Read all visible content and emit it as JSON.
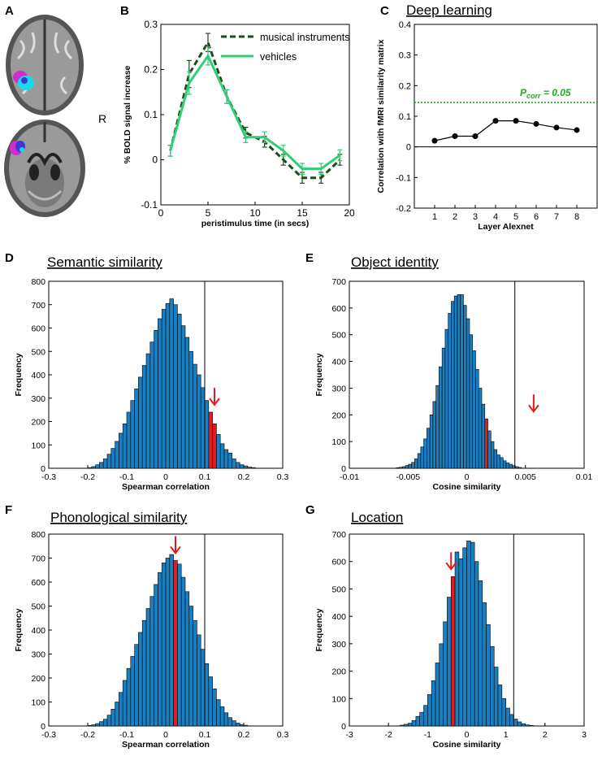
{
  "panel_labels": {
    "A": "A",
    "B": "B",
    "C": "C",
    "D": "D",
    "E": "E",
    "F": "F",
    "G": "G"
  },
  "brain": {
    "orientation_label": "R"
  },
  "colors": {
    "bar": "#1a7fc1",
    "highlight": "#e41a1c",
    "arrow": "#e41a1c",
    "music": "#1b4d1b",
    "vehicles": "#33cc77",
    "threshold": "#22aa22",
    "brain_magenta": "#d22bd2",
    "brain_cyan": "#19d9f0"
  },
  "chart_data": [
    {
      "id": "B",
      "type": "line",
      "title": "",
      "xlabel": "peristimulus time (in secs)",
      "ylabel": "% BOLD signal increase",
      "xlim": [
        0,
        20
      ],
      "ylim": [
        -0.1,
        0.3
      ],
      "x_ticks": [
        "0",
        "5",
        "10",
        "15",
        "20"
      ],
      "y_ticks": [
        "-0.1",
        "0",
        "0.1",
        "0.2",
        "0.3"
      ],
      "x": [
        1,
        3,
        5,
        7,
        9,
        11,
        13,
        15,
        17,
        19
      ],
      "series": [
        {
          "name": "musical instruments",
          "values": [
            0.02,
            0.19,
            0.26,
            0.14,
            0.06,
            0.04,
            0.0,
            -0.04,
            -0.04,
            0.0
          ],
          "errors": [
            0.012,
            0.03,
            0.02,
            0.015,
            0.012,
            0.012,
            0.012,
            0.012,
            0.012,
            0.012
          ]
        },
        {
          "name": "vehicles",
          "values": [
            0.02,
            0.17,
            0.23,
            0.14,
            0.05,
            0.05,
            0.02,
            -0.02,
            -0.02,
            0.01
          ],
          "errors": [
            0.012,
            0.025,
            0.02,
            0.015,
            0.012,
            0.012,
            0.012,
            0.012,
            0.012,
            0.012
          ]
        }
      ],
      "legend": "top-right"
    },
    {
      "id": "C",
      "type": "line",
      "title": "Deep learning",
      "xlabel": "Layer Alexnet",
      "ylabel": "Correlation with fMRI similarity matrix",
      "xlim": [
        0,
        9
      ],
      "ylim": [
        -0.2,
        0.4
      ],
      "x_ticks": [
        "1",
        "2",
        "3",
        "4",
        "5",
        "6",
        "7",
        "8"
      ],
      "y_ticks": [
        "-0.2",
        "-0.1",
        "0",
        "0.1",
        "0.2",
        "0.3",
        "0.4"
      ],
      "x": [
        1,
        2,
        3,
        4,
        5,
        6,
        7,
        8
      ],
      "series": [
        {
          "name": "correlation",
          "values": [
            0.02,
            0.035,
            0.035,
            0.085,
            0.085,
            0.075,
            0.063,
            0.055
          ]
        }
      ],
      "threshold": {
        "value": 0.145,
        "label_main": "P",
        "label_sub": "corr",
        "label_eq": " =  0.05"
      }
    },
    {
      "id": "D",
      "type": "bar",
      "title": "Semantic similarity",
      "xlabel": "Spearman correlation",
      "ylabel": "Frequency",
      "xlim": [
        -0.3,
        0.3
      ],
      "ylim": [
        0,
        800
      ],
      "x_ticks": [
        "-0.3",
        "-0.2",
        "-0.1",
        "0",
        "0.1",
        "0.2",
        "0.3"
      ],
      "y_ticks": [
        "0",
        "100",
        "200",
        "300",
        "400",
        "500",
        "600",
        "700",
        "800"
      ],
      "bin_start": -0.2,
      "bin_width": 0.01,
      "values": [
        3,
        7,
        15,
        25,
        40,
        60,
        85,
        115,
        150,
        190,
        240,
        290,
        340,
        390,
        440,
        490,
        540,
        590,
        640,
        680,
        705,
        725,
        700,
        660,
        610,
        560,
        500,
        445,
        400,
        345,
        290,
        240,
        190,
        145,
        105,
        80,
        65,
        40,
        25,
        15,
        10,
        5,
        3
      ],
      "highlight_index": [
        31,
        32
      ],
      "observed_line": 0.1,
      "arrow_x": 0.125
    },
    {
      "id": "E",
      "type": "bar",
      "title": "Object identity",
      "xlabel": "Cosine similarity",
      "ylabel": "Frequency",
      "xlim": [
        -0.01,
        0.01
      ],
      "ylim": [
        0,
        700
      ],
      "x_ticks": [
        "-0.01",
        "-0.005",
        "0",
        "0.005",
        "0.01"
      ],
      "y_ticks": [
        "0",
        "100",
        "200",
        "300",
        "400",
        "500",
        "600",
        "700"
      ],
      "bin_start": -0.006,
      "bin_width": 0.00026,
      "values": [
        2,
        4,
        6,
        10,
        15,
        22,
        35,
        55,
        80,
        110,
        150,
        200,
        250,
        310,
        380,
        450,
        520,
        580,
        625,
        645,
        650,
        650,
        610,
        560,
        500,
        440,
        370,
        300,
        240,
        185,
        140,
        100,
        70,
        50,
        40,
        28,
        20,
        15,
        10,
        6,
        3
      ],
      "highlight_index": [
        29
      ],
      "observed_line": 0.0041,
      "arrow_x": 0.0057
    },
    {
      "id": "F",
      "type": "bar",
      "title": "Phonological similarity",
      "xlabel": "Spearman correlation",
      "ylabel": "Frequency",
      "xlim": [
        -0.3,
        0.3
      ],
      "ylim": [
        0,
        800
      ],
      "x_ticks": [
        "-0.3",
        "-0.2",
        "-0.1",
        "0",
        "0.1",
        "0.2",
        "0.3"
      ],
      "y_ticks": [
        "0",
        "100",
        "200",
        "300",
        "400",
        "500",
        "600",
        "700",
        "800"
      ],
      "bin_start": -0.2,
      "bin_width": 0.01,
      "values": [
        2,
        5,
        10,
        18,
        28,
        45,
        70,
        100,
        140,
        190,
        240,
        290,
        340,
        390,
        440,
        490,
        540,
        590,
        640,
        680,
        700,
        715,
        690,
        675,
        620,
        560,
        500,
        440,
        380,
        320,
        260,
        205,
        155,
        110,
        80,
        55,
        35,
        22,
        12,
        6,
        3
      ],
      "highlight_index": [
        22
      ],
      "observed_line": 0.1,
      "arrow_x": 0.025
    },
    {
      "id": "G",
      "type": "bar",
      "title": "Location",
      "xlabel": "Cosine similarity",
      "ylabel": "Frequency",
      "xlim": [
        -3,
        3
      ],
      "ylim": [
        0,
        700
      ],
      "x_ticks": [
        "-3",
        "-2",
        "-1",
        "0",
        "1",
        "2",
        "3"
      ],
      "y_ticks": [
        "0",
        "100",
        "200",
        "300",
        "400",
        "500",
        "600",
        "700"
      ],
      "bin_start": -1.7,
      "bin_width": 0.1,
      "values": [
        3,
        6,
        10,
        20,
        35,
        50,
        75,
        115,
        165,
        230,
        300,
        380,
        470,
        545,
        635,
        610,
        650,
        675,
        670,
        600,
        530,
        450,
        370,
        290,
        215,
        150,
        100,
        65,
        42,
        25,
        15,
        8,
        4,
        2
      ],
      "highlight_index": [
        13
      ],
      "observed_line": 1.2,
      "arrow_x": -0.4
    }
  ]
}
